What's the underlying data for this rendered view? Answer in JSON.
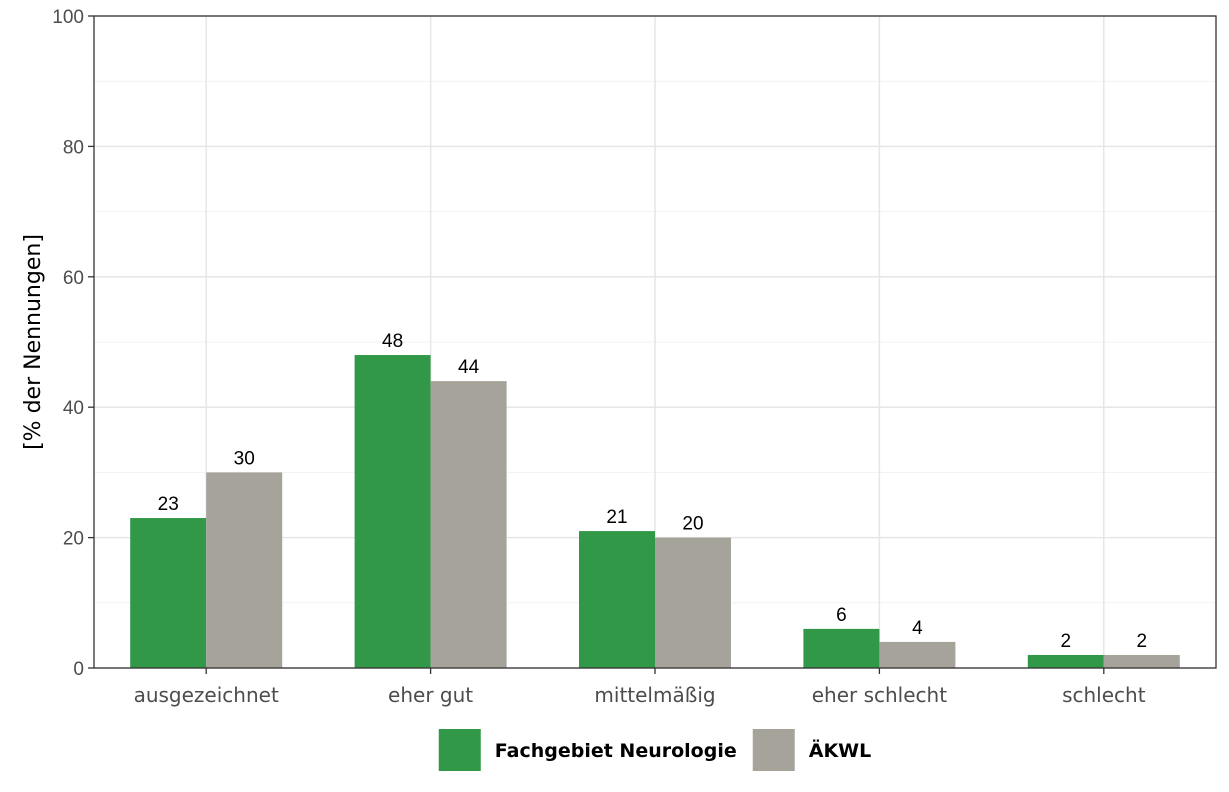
{
  "chart_data": {
    "type": "bar",
    "categories": [
      "ausgezeichnet",
      "eher gut",
      "mittelmäßig",
      "eher schlecht",
      "schlecht"
    ],
    "series": [
      {
        "name": "Fachgebiet Neurologie",
        "values": [
          23,
          48,
          21,
          6,
          2
        ],
        "labels": [
          "23",
          "48",
          "21",
          "6",
          "2"
        ],
        "color": "#319848"
      },
      {
        "name": "ÄKWL",
        "values": [
          30,
          44,
          20,
          4,
          2
        ],
        "labels": [
          "30",
          "44",
          "20",
          "4",
          "2"
        ],
        "color": "#a6a39b"
      }
    ],
    "title": "",
    "xlabel": "",
    "ylabel": "[% der Nennungen]",
    "ylim": [
      0,
      100
    ],
    "yticks": [
      0,
      20,
      40,
      60,
      80,
      100
    ],
    "ytick_labels": [
      "0",
      "20",
      "40",
      "60",
      "80",
      "100"
    ],
    "grid": true,
    "legend_position": "bottom"
  }
}
